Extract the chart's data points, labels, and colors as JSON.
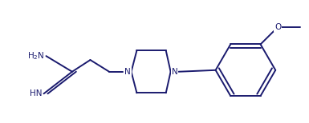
{
  "bg_color": "#ffffff",
  "line_color": "#1a1a6e",
  "text_color": "#1a1a6e",
  "line_width": 1.4,
  "font_size": 7.5,
  "figsize": [
    3.85,
    1.54
  ],
  "dpi": 100,
  "xlim": [
    0,
    385
  ],
  "ylim": [
    0,
    154
  ]
}
